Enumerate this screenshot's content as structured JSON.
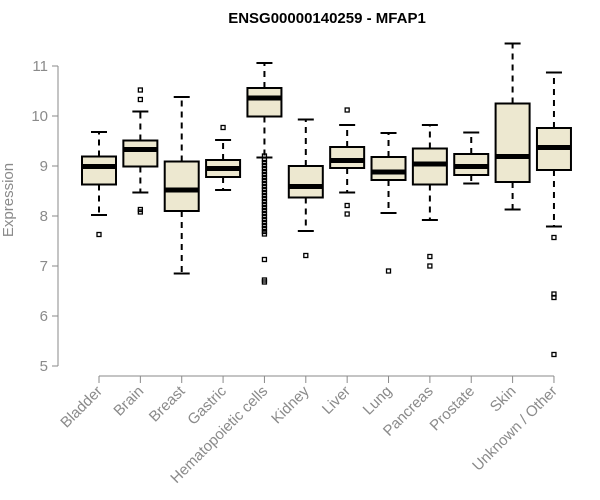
{
  "chart_data": {
    "type": "boxplot",
    "title": "ENSG00000140259 - MFAP1",
    "ylabel": "Expression",
    "xlabel": "",
    "ylim": [
      5,
      11.6
    ],
    "yticks": [
      5,
      6,
      7,
      8,
      9,
      10,
      11
    ],
    "box_fill": "#ede8d0",
    "box_stroke": "#000000",
    "axis_color": "#8a8a8a",
    "categories": [
      "Bladder",
      "Brain",
      "Breast",
      "Gastric",
      "Hematopoietic cells",
      "Kidney",
      "Liver",
      "Lung",
      "Pancreas",
      "Prostate",
      "Skin",
      "Unknown / Other"
    ],
    "boxes": [
      {
        "category": "Bladder",
        "whisker_low": 8.02,
        "q1": 8.63,
        "median": 8.99,
        "q3": 9.19,
        "whisker_high": 9.68,
        "outliers": [
          7.63
        ]
      },
      {
        "category": "Brain",
        "whisker_low": 8.47,
        "q1": 8.99,
        "median": 9.33,
        "q3": 9.51,
        "whisker_high": 10.09,
        "outliers": [
          8.08,
          8.13,
          10.33,
          10.52
        ]
      },
      {
        "category": "Breast",
        "whisker_low": 6.85,
        "q1": 8.1,
        "median": 8.52,
        "q3": 9.09,
        "whisker_high": 10.38,
        "outliers": []
      },
      {
        "category": "Gastric",
        "whisker_low": 8.52,
        "q1": 8.78,
        "median": 8.95,
        "q3": 9.12,
        "whisker_high": 9.52,
        "outliers": [
          9.77
        ]
      },
      {
        "category": "Hematopoietic cells",
        "whisker_low": 9.17,
        "q1": 9.99,
        "median": 10.36,
        "q3": 10.56,
        "whisker_high": 11.06,
        "outliers": [
          9.2,
          9.13,
          9.07,
          9.01,
          8.95,
          8.89,
          8.83,
          8.77,
          8.71,
          8.65,
          8.59,
          8.53,
          8.47,
          8.41,
          8.35,
          8.29,
          8.23,
          8.17,
          8.11,
          8.05,
          7.99,
          7.93,
          7.87,
          7.81,
          7.75,
          7.69,
          7.64,
          7.13,
          6.72,
          6.68
        ]
      },
      {
        "category": "Kidney",
        "whisker_low": 7.7,
        "q1": 8.37,
        "median": 8.59,
        "q3": 9.0,
        "whisker_high": 9.93,
        "outliers": [
          7.21
        ]
      },
      {
        "category": "Liver",
        "whisker_low": 8.47,
        "q1": 8.96,
        "median": 9.11,
        "q3": 9.38,
        "whisker_high": 9.82,
        "outliers": [
          8.04,
          8.21,
          10.12
        ]
      },
      {
        "category": "Lung",
        "whisker_low": 8.06,
        "q1": 8.72,
        "median": 8.88,
        "q3": 9.18,
        "whisker_high": 9.66,
        "outliers": [
          6.9
        ]
      },
      {
        "category": "Pancreas",
        "whisker_low": 7.92,
        "q1": 8.63,
        "median": 9.04,
        "q3": 9.35,
        "whisker_high": 9.82,
        "outliers": [
          7.0,
          7.19
        ]
      },
      {
        "category": "Prostate",
        "whisker_low": 8.65,
        "q1": 8.82,
        "median": 8.99,
        "q3": 9.24,
        "whisker_high": 9.67,
        "outliers": []
      },
      {
        "category": "Skin",
        "whisker_low": 8.13,
        "q1": 8.68,
        "median": 9.19,
        "q3": 10.25,
        "whisker_high": 11.45,
        "outliers": []
      },
      {
        "category": "Unknown / Other",
        "whisker_low": 7.79,
        "q1": 8.92,
        "median": 9.37,
        "q3": 9.76,
        "whisker_high": 10.87,
        "outliers": [
          7.57,
          6.44,
          6.37,
          5.23
        ]
      }
    ]
  }
}
